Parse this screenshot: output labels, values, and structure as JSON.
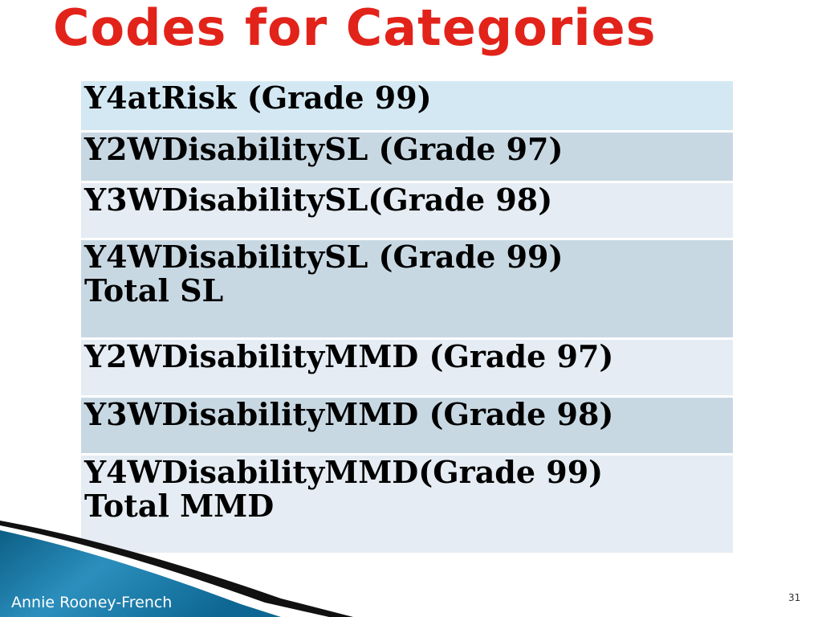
{
  "slide": {
    "title": "Codes for Categories",
    "rows": [
      {
        "line1": "Y4atRisk (Grade 99)",
        "line2": ""
      },
      {
        "line1": "Y2WDisabilitySL (Grade 97)",
        "line2": ""
      },
      {
        "line1": "Y3WDisabilitySL(Grade 98)",
        "line2": ""
      },
      {
        "line1": "Y4WDisabilitySL (Grade 99)",
        "line2": "Total SL"
      },
      {
        "line1": "Y2WDisabilityMMD (Grade 97)",
        "line2": ""
      },
      {
        "line1": "Y3WDisabilityMMD (Grade 98)",
        "line2": ""
      },
      {
        "line1": "Y4WDisabilityMMD(Grade 99)",
        "line2": "Total MMD"
      }
    ],
    "author": "Annie Rooney-French",
    "page_number": "31"
  },
  "colors": {
    "title": "#e2231a",
    "row_light_blue": "#d3e8f2",
    "row_blue_gray": "#c8d8e3",
    "row_light_gray": "#e5ecf3",
    "swoosh_dark": "#111111",
    "swoosh_blue": "#1f7fa8"
  }
}
